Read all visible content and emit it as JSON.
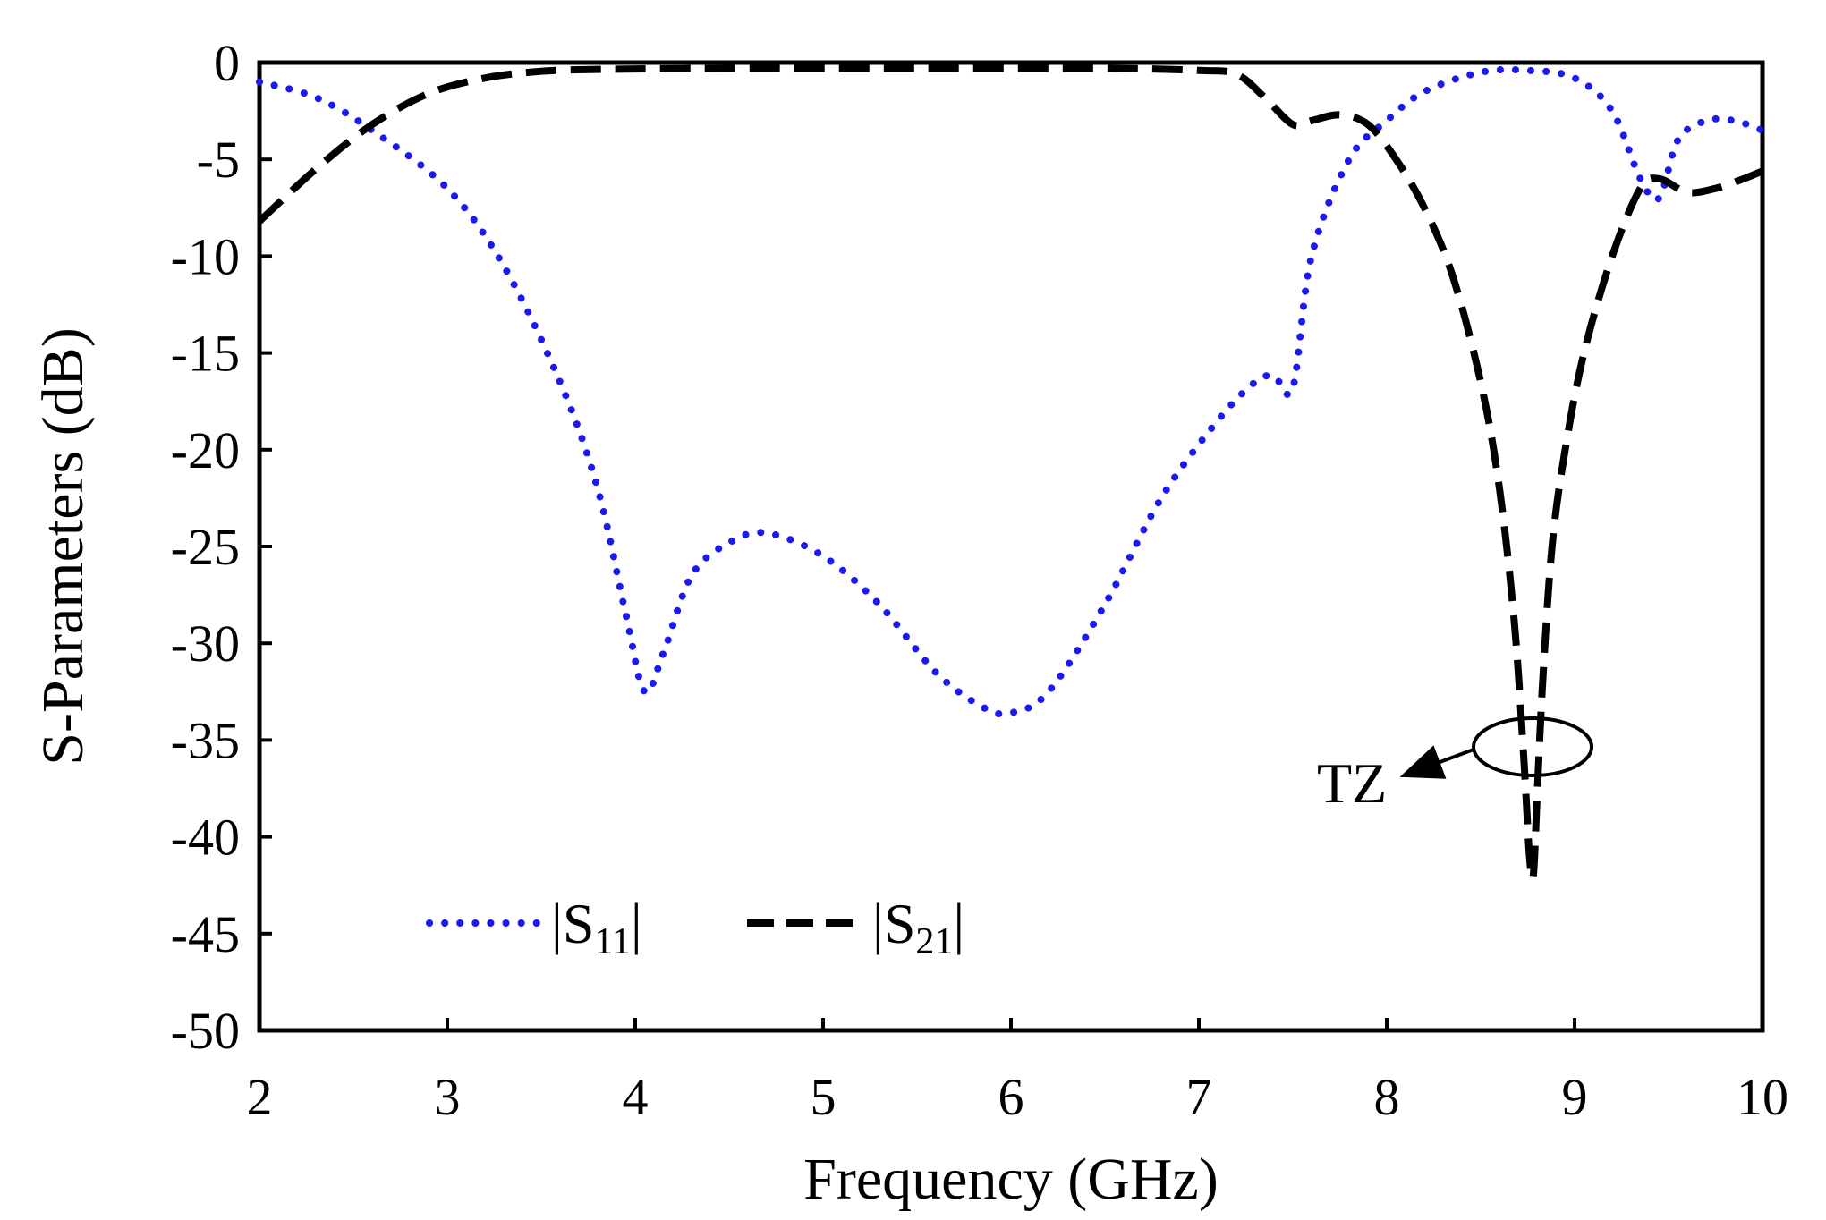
{
  "chart_data": {
    "type": "line",
    "title": "",
    "xlabel": "Frequency (GHz)",
    "ylabel": "S-Parameters (dB)",
    "xlim": [
      2,
      10
    ],
    "ylim": [
      -50,
      0
    ],
    "xticks": [
      2,
      3,
      4,
      5,
      6,
      7,
      8,
      9,
      10
    ],
    "yticks": [
      0,
      -5,
      -10,
      -15,
      -20,
      -25,
      -30,
      -35,
      -40,
      -45,
      -50
    ],
    "xtick_labels": [
      "2",
      "3",
      "4",
      "5",
      "6",
      "7",
      "8",
      "9",
      "10"
    ],
    "ytick_labels": [
      "0",
      "-5",
      "-10",
      "-15",
      "-20",
      "-25",
      "-30",
      "-35",
      "-40",
      "-45",
      "-50"
    ],
    "grid": false,
    "legend_position": "bottom-left",
    "series": [
      {
        "name": "|S11|",
        "legend_main": "S",
        "legend_sub": "11",
        "style": "dotted",
        "color": "#1a1aee",
        "x": [
          2.0,
          2.3,
          2.6,
          3.0,
          3.3,
          3.6,
          3.8,
          3.95,
          4.05,
          4.15,
          4.3,
          4.5,
          4.7,
          5.0,
          5.3,
          5.6,
          5.85,
          6.0,
          6.2,
          6.5,
          6.8,
          7.1,
          7.3,
          7.4,
          7.5,
          7.6,
          7.8,
          8.0,
          8.2,
          8.5,
          8.75,
          9.0,
          9.2,
          9.35,
          9.45,
          9.55,
          9.7,
          9.85,
          10.0
        ],
        "y": [
          -1.0,
          -1.8,
          -3.5,
          -6.5,
          -10.5,
          -16.5,
          -22.0,
          -28.5,
          -32.5,
          -30.5,
          -26.5,
          -24.8,
          -24.3,
          -25.5,
          -28.0,
          -31.5,
          -33.3,
          -33.6,
          -32.5,
          -28.0,
          -22.5,
          -18.5,
          -16.5,
          -16.2,
          -16.8,
          -10.0,
          -5.0,
          -3.0,
          -1.5,
          -0.5,
          -0.4,
          -0.8,
          -2.5,
          -6.0,
          -7.0,
          -4.0,
          -3.0,
          -3.0,
          -3.5
        ]
      },
      {
        "name": "|S21|",
        "legend_main": "S",
        "legend_sub": "21",
        "style": "dashed",
        "color": "#000000",
        "x": [
          2.0,
          2.3,
          2.6,
          2.9,
          3.2,
          3.5,
          3.8,
          4.5,
          5.5,
          6.5,
          7.0,
          7.2,
          7.35,
          7.5,
          7.6,
          7.75,
          7.9,
          8.05,
          8.2,
          8.35,
          8.5,
          8.6,
          8.68,
          8.73,
          8.76,
          8.78,
          8.8,
          8.83,
          8.88,
          8.95,
          9.05,
          9.2,
          9.35,
          9.45,
          9.6,
          9.75,
          9.9,
          10.0
        ],
        "y": [
          -8.2,
          -5.5,
          -3.2,
          -1.6,
          -0.8,
          -0.45,
          -0.35,
          -0.3,
          -0.3,
          -0.3,
          -0.4,
          -0.6,
          -1.8,
          -3.2,
          -3.0,
          -2.7,
          -3.2,
          -5.0,
          -7.5,
          -11.0,
          -16.5,
          -22.0,
          -29.0,
          -36.0,
          -41.0,
          -42.0,
          -38.0,
          -32.0,
          -25.0,
          -20.0,
          -15.0,
          -10.0,
          -6.5,
          -6.0,
          -6.7,
          -6.5,
          -6.0,
          -5.6
        ]
      }
    ],
    "annotations": [
      {
        "text": "TZ",
        "points_to": {
          "x": 8.78,
          "y": -35.3
        }
      }
    ]
  }
}
